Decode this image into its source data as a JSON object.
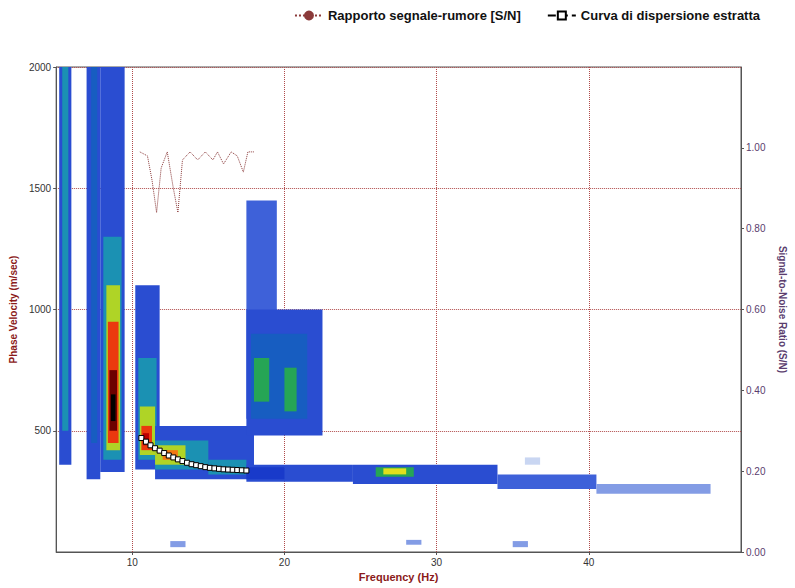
{
  "chart_data": {
    "type": "heatmap",
    "x_label": "Frequency (Hz)",
    "y_label": "Phase Velocity (m/sec)",
    "y2_label": "Signal-to-Noise Ratio (S/N)",
    "xlim": [
      5,
      50
    ],
    "xticks": [
      10,
      20,
      30,
      40
    ],
    "ylim": [
      0,
      2000
    ],
    "yticks": [
      500,
      1000,
      1500,
      2000
    ],
    "y2lim": [
      0,
      1.2
    ],
    "y2ticks": [
      {
        "value": 0,
        "label": "0.00"
      },
      {
        "value": 0.2,
        "label": "0.20"
      },
      {
        "value": 0.4,
        "label": "0.40"
      },
      {
        "value": 0.6,
        "label": "0.60"
      },
      {
        "value": 0.8,
        "label": "0.80"
      },
      {
        "value": 1.0,
        "label": "1.00"
      }
    ],
    "grid": true,
    "legend": "top-right",
    "heatmap": {
      "cells": [
        [
          5.2,
          6.0,
          360,
          2000,
          0.3
        ],
        [
          5.4,
          5.8,
          500,
          2000,
          0.45
        ],
        [
          7.0,
          7.9,
          300,
          2000,
          0.3
        ],
        [
          7.3,
          7.7,
          450,
          2000,
          0.4
        ],
        [
          7.9,
          9.5,
          330,
          2000,
          0.3
        ],
        [
          8.1,
          9.3,
          380,
          1300,
          0.45
        ],
        [
          8.3,
          9.2,
          420,
          1100,
          0.6
        ],
        [
          8.4,
          9.1,
          450,
          950,
          0.8
        ],
        [
          8.5,
          9.0,
          500,
          750,
          0.95
        ],
        [
          8.6,
          8.9,
          540,
          650,
          1.0
        ],
        [
          10.2,
          11.8,
          340,
          1100,
          0.3
        ],
        [
          10.4,
          11.6,
          380,
          800,
          0.45
        ],
        [
          10.5,
          11.5,
          400,
          600,
          0.6
        ],
        [
          10.6,
          11.3,
          420,
          520,
          0.8
        ],
        [
          10.7,
          11.1,
          440,
          490,
          0.9
        ],
        [
          11.5,
          18.0,
          300,
          520,
          0.3
        ],
        [
          11.5,
          15.0,
          340,
          460,
          0.45
        ],
        [
          11.5,
          13.5,
          360,
          440,
          0.6
        ],
        [
          12.0,
          13.0,
          380,
          420,
          0.75
        ],
        [
          15.0,
          17.5,
          320,
          380,
          0.45
        ],
        [
          17.5,
          19.5,
          550,
          1450,
          0.25
        ],
        [
          17.5,
          22.5,
          480,
          1000,
          0.3
        ],
        [
          17.8,
          21.5,
          550,
          900,
          0.4
        ],
        [
          18.0,
          19.0,
          620,
          800,
          0.5
        ],
        [
          20.0,
          20.8,
          580,
          760,
          0.5
        ],
        [
          17.5,
          24.5,
          290,
          360,
          0.3
        ],
        [
          24.5,
          34.0,
          280,
          360,
          0.3
        ],
        [
          34.0,
          40.5,
          260,
          320,
          0.25
        ],
        [
          40.5,
          48.0,
          240,
          280,
          0.2
        ],
        [
          17.5,
          20.0,
          300,
          350,
          0.35
        ],
        [
          26.0,
          28.5,
          310,
          350,
          0.5
        ],
        [
          26.5,
          28.0,
          320,
          345,
          0.65
        ],
        [
          35.8,
          36.8,
          360,
          390,
          0.15
        ],
        [
          12.5,
          13.5,
          20,
          45,
          0.2
        ],
        [
          28.0,
          29.0,
          30,
          50,
          0.2
        ],
        [
          35.0,
          36.0,
          20,
          45,
          0.2
        ]
      ]
    },
    "series": [
      {
        "name": "Rapporto segnale-rumore [S/N]",
        "type": "line",
        "axis": "y2",
        "color": "#8b3a3a",
        "line_style": "dotted",
        "marker": "none",
        "x": [
          10.5,
          11.0,
          11.3,
          11.6,
          11.9,
          12.3,
          12.7,
          13.0,
          13.3,
          13.8,
          14.3,
          14.8,
          15.3,
          15.6,
          16.0,
          16.5,
          16.9,
          17.3,
          17.6,
          18.0
        ],
        "values": [
          0.99,
          0.98,
          0.92,
          0.84,
          0.95,
          0.99,
          0.9,
          0.84,
          0.97,
          0.99,
          0.97,
          0.99,
          0.97,
          0.99,
          0.96,
          0.99,
          0.98,
          0.94,
          0.99,
          0.99
        ]
      },
      {
        "name": "Curva di dispersione estratta",
        "type": "line",
        "color": "#000000",
        "line_style": "dashed",
        "marker": "square",
        "x": [
          10.6,
          10.9,
          11.2,
          11.5,
          11.8,
          12.1,
          12.4,
          12.7,
          13.0,
          13.3,
          13.6,
          13.9,
          14.2,
          14.5,
          14.8,
          15.1,
          15.4,
          15.7,
          16.0,
          16.3,
          16.6,
          16.9,
          17.2,
          17.5
        ],
        "values": [
          470,
          455,
          440,
          428,
          418,
          408,
          398,
          390,
          382,
          375,
          368,
          362,
          358,
          354,
          350,
          347,
          345,
          343,
          341,
          340,
          339,
          338,
          337,
          336
        ]
      }
    ]
  }
}
